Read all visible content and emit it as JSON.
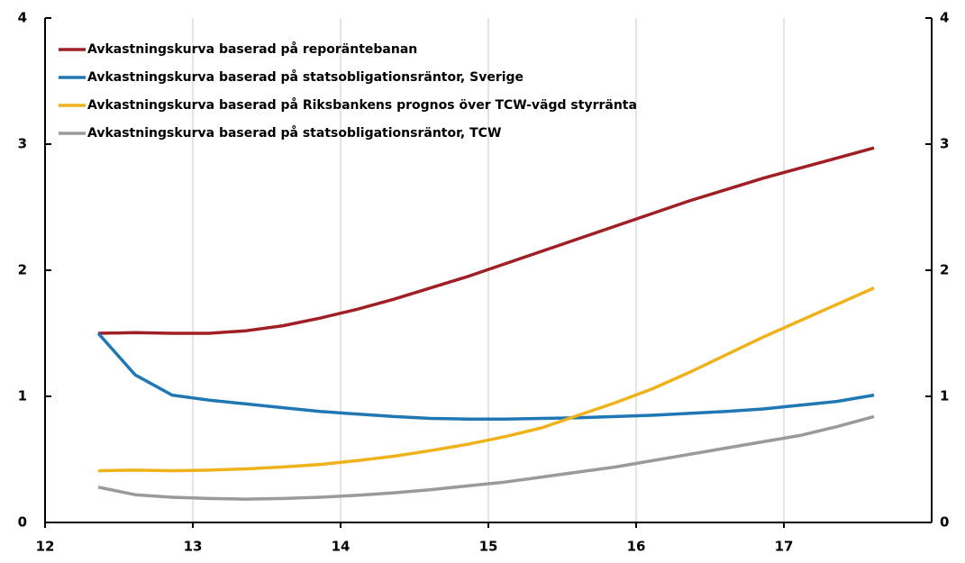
{
  "chart_data": {
    "type": "line",
    "x": [
      12.36,
      12.61,
      12.86,
      13.11,
      13.36,
      13.61,
      13.86,
      14.11,
      14.36,
      14.61,
      14.86,
      15.11,
      15.36,
      15.61,
      15.86,
      16.11,
      16.36,
      16.61,
      16.86,
      17.11,
      17.36,
      17.61
    ],
    "series": [
      {
        "name": "Avkastningskurva baserad på reporäntebanan",
        "color": "#a01f24",
        "values": [
          1.5,
          1.505,
          1.5,
          1.5,
          1.52,
          1.56,
          1.62,
          1.69,
          1.77,
          1.86,
          1.95,
          2.05,
          2.15,
          2.25,
          2.35,
          2.45,
          2.55,
          2.64,
          2.73,
          2.81,
          2.89,
          2.97
        ]
      },
      {
        "name": "Avkastningskurva baserad på statsobligationsräntor, Sverige",
        "color": "#1f78b4",
        "values": [
          1.5,
          1.17,
          1.01,
          0.97,
          0.94,
          0.91,
          0.88,
          0.86,
          0.84,
          0.825,
          0.82,
          0.82,
          0.825,
          0.83,
          0.84,
          0.85,
          0.865,
          0.88,
          0.9,
          0.93,
          0.96,
          1.01
        ]
      },
      {
        "name": "Avkastningskurva baserad på Riksbankens prognos över TCW-vägd styrränta",
        "color": "#f0b21a",
        "values": [
          0.41,
          0.415,
          0.41,
          0.415,
          0.425,
          0.44,
          0.46,
          0.49,
          0.525,
          0.57,
          0.62,
          0.68,
          0.75,
          0.85,
          0.95,
          1.06,
          1.19,
          1.33,
          1.47,
          1.6,
          1.73,
          1.86
        ]
      },
      {
        "name": "Avkastningskurva baserad på statsobligationsräntor, TCW",
        "color": "#9a9a9a",
        "values": [
          0.28,
          0.22,
          0.2,
          0.19,
          0.185,
          0.19,
          0.2,
          0.215,
          0.235,
          0.26,
          0.29,
          0.32,
          0.36,
          0.4,
          0.44,
          0.49,
          0.54,
          0.59,
          0.64,
          0.69,
          0.76,
          0.84
        ]
      }
    ],
    "xlim": [
      12,
      18
    ],
    "xticks": [
      12,
      13,
      14,
      15,
      16,
      17
    ],
    "ylim": [
      0,
      4
    ],
    "yticks": [
      0,
      1,
      2,
      3,
      4
    ],
    "y2lim": [
      0,
      4
    ],
    "y2ticks": [
      0,
      1,
      2,
      3,
      4
    ],
    "grid": true
  }
}
